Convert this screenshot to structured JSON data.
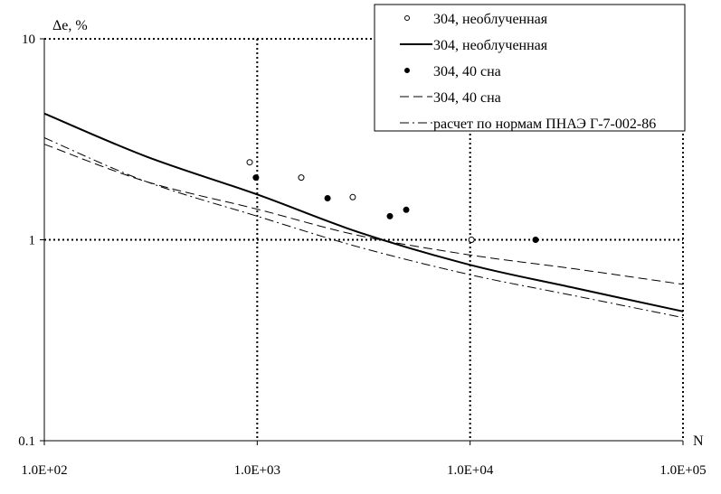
{
  "chart_data": {
    "type": "scatter",
    "title": "",
    "xlabel": "N",
    "ylabel": "Δe, %",
    "xscale": "log",
    "yscale": "log",
    "xlim": [
      100,
      100000
    ],
    "ylim": [
      0.1,
      10
    ],
    "x_ticks": [
      "1.0E+02",
      "1.0E+03",
      "1.0E+04",
      "1.0E+05"
    ],
    "x_tick_values": [
      100,
      1000,
      10000,
      100000
    ],
    "y_ticks": [
      "0.1",
      "1",
      "10"
    ],
    "y_tick_values": [
      0.1,
      1,
      10
    ],
    "grid": "dotted",
    "legend_position": "top-right",
    "series": [
      {
        "name": "304, необлученная",
        "kind": "points-open",
        "x": [
          922,
          1610,
          2810,
          10150
        ],
        "y": [
          2.43,
          2.04,
          1.63,
          1.0
        ]
      },
      {
        "name": "304, необлученная",
        "kind": "line-solid",
        "x": [
          100,
          300,
          1000,
          3000,
          10000,
          30000,
          100000
        ],
        "y": [
          4.25,
          2.6,
          1.68,
          1.09,
          0.75,
          0.58,
          0.44
        ]
      },
      {
        "name": "304, 40 сна",
        "kind": "points-filled",
        "x": [
          986,
          2140,
          4200,
          5010,
          20300
        ],
        "y": [
          2.04,
          1.61,
          1.31,
          1.41,
          1.0
        ]
      },
      {
        "name": "304, 40 сна",
        "kind": "line-dashed",
        "x": [
          100,
          300,
          1000,
          3000,
          10000,
          30000,
          100000
        ],
        "y": [
          2.99,
          1.95,
          1.42,
          1.05,
          0.84,
          0.72,
          0.6
        ]
      },
      {
        "name": "расчет по нормам ПНАЭ Г-7-002-86",
        "kind": "line-dashdot",
        "x": [
          100,
          300,
          1000,
          3000,
          10000,
          30000,
          100000
        ],
        "y": [
          3.22,
          1.95,
          1.31,
          0.92,
          0.67,
          0.53,
          0.41
        ]
      }
    ]
  }
}
